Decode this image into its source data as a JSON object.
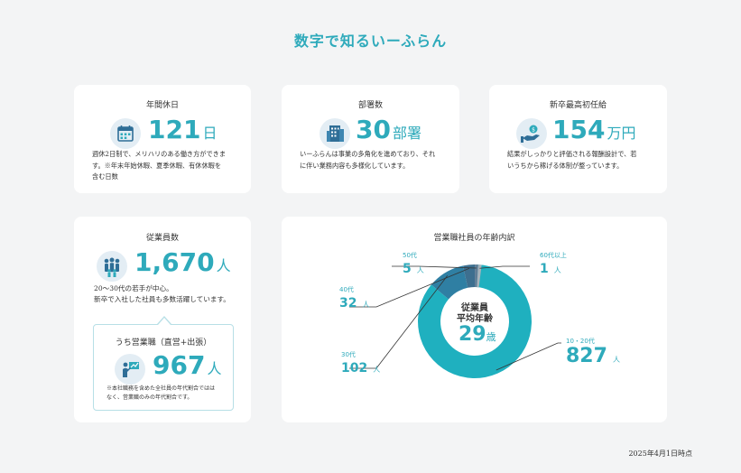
{
  "title": "数字で知るいーふらん",
  "stats": {
    "holidays": {
      "label": "年間休日",
      "value": "121",
      "unit": "日",
      "desc": [
        "週休2日制で、メリハリのある働き方ができま",
        "す。※年末年始休暇、夏季休暇、有休休暇を",
        "含む日数"
      ],
      "icon": "calendar-icon"
    },
    "departments": {
      "label": "部署数",
      "value": "30",
      "unit": "部署",
      "desc": [
        "いーふらんは事業の多角化を進めており、それ",
        "に伴い業務内容も多様化しています。"
      ],
      "icon": "building-icon"
    },
    "salary": {
      "label": "新卒最高初任給",
      "value": "154",
      "unit": "万円",
      "desc": [
        "結果がしっかりと評価される報酬設計で、若",
        "いうちから稼げる体制が整っています。"
      ],
      "icon": "money-hand-icon"
    },
    "employees": {
      "label": "従業員数",
      "value": "1,670",
      "unit": "人",
      "desc": [
        "20〜30代の若手が中心。",
        "新卒で入社した社員も多数活躍しています。"
      ],
      "icon": "people-group-icon"
    },
    "sales": {
      "label": "うち営業職（直営+出張）",
      "value": "967",
      "unit": "人",
      "note": [
        "※本社職務を含めた全社員の年代割合ではは",
        "なく、営業職のみの年代割合です。"
      ],
      "icon": "presenter-icon"
    }
  },
  "chart_data": {
    "type": "pie",
    "title": "営業職社員の年齢内訳",
    "center_label": "従業員\n平均年齢",
    "center_value": "29",
    "center_unit": "歳",
    "unit": "人",
    "categories": [
      "10・20代",
      "30代",
      "40代",
      "50代",
      "60代以上"
    ],
    "values": [
      827,
      102,
      32,
      5,
      1
    ],
    "colors": [
      "#1fb0bf",
      "#2f7fa3",
      "#3d6f8f",
      "#5f7d96",
      "#a9b3bc"
    ]
  },
  "footer": {
    "date": "2025年4月1日時点"
  }
}
